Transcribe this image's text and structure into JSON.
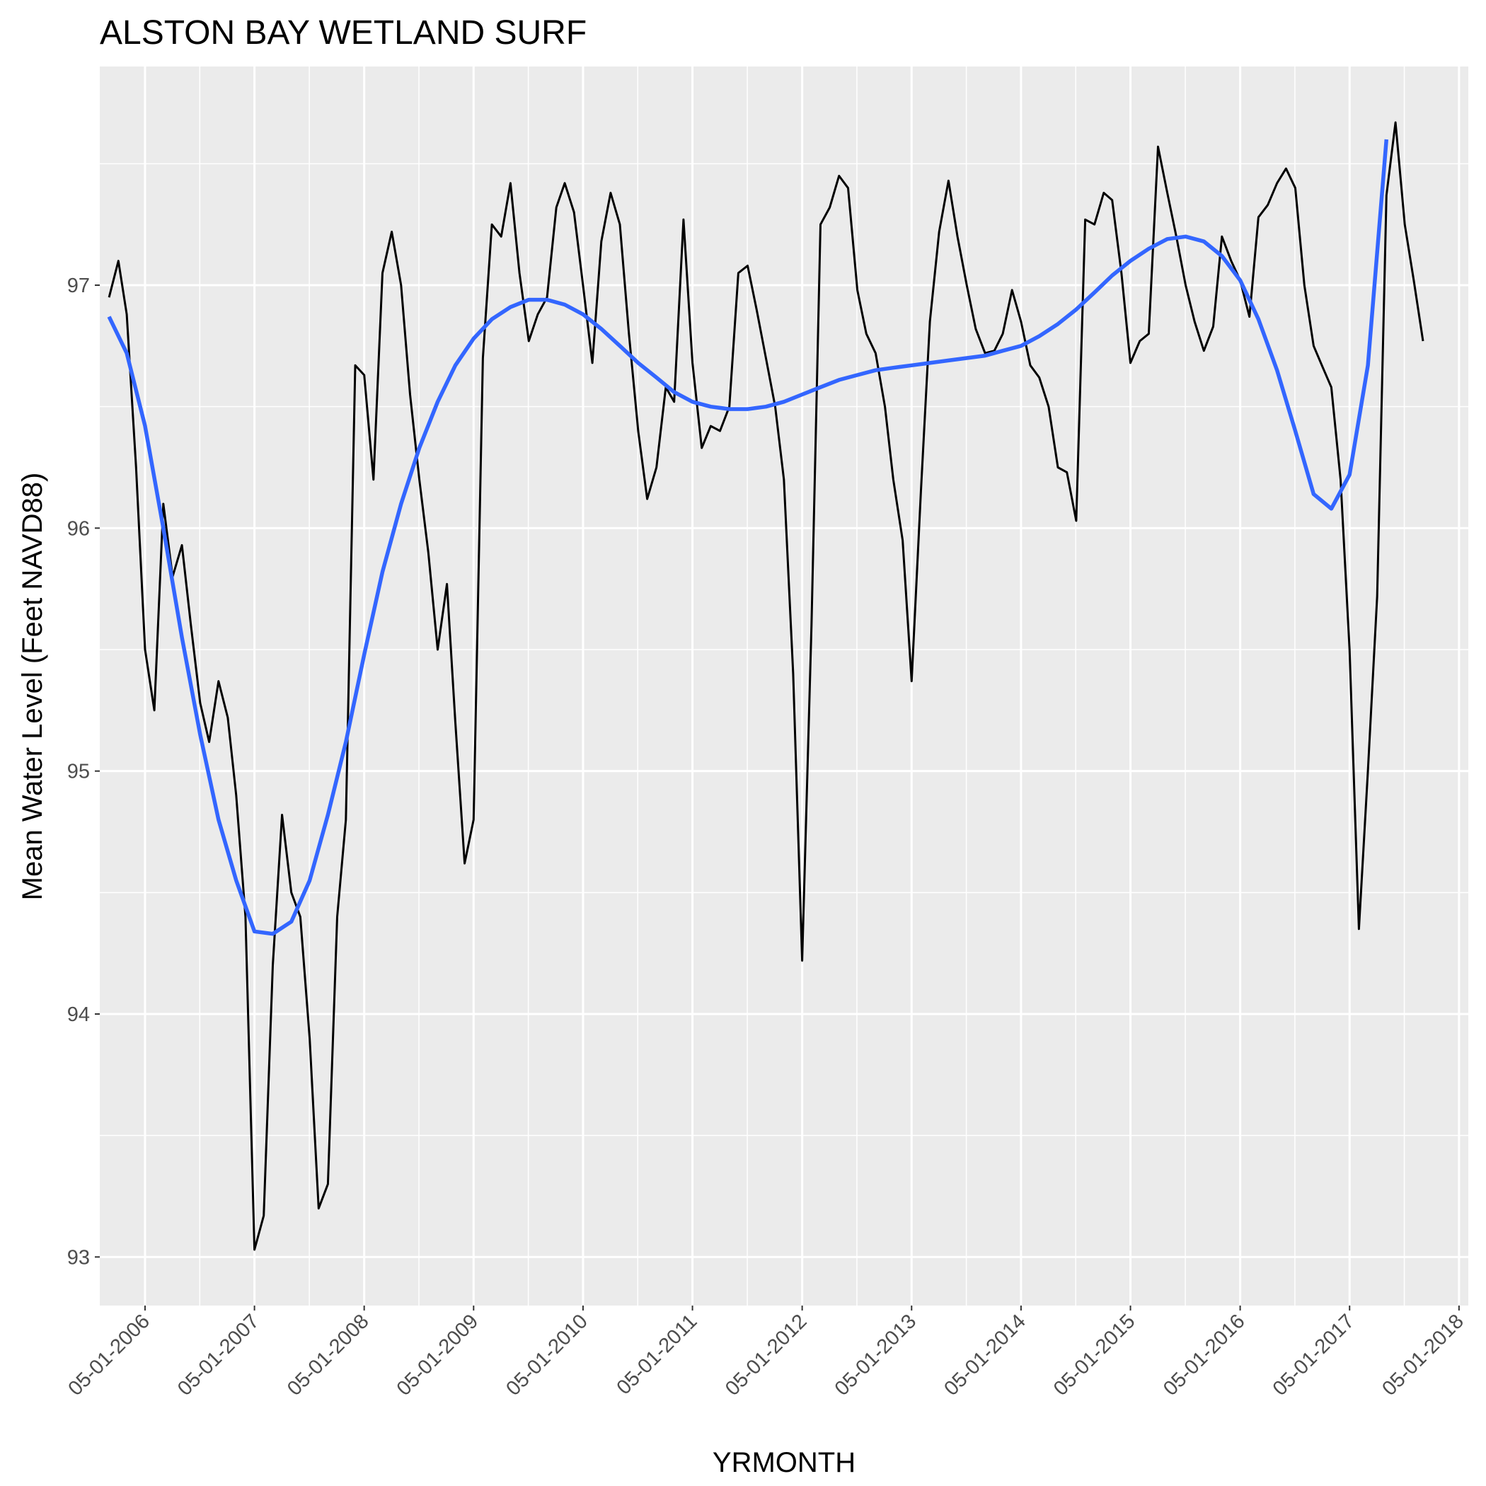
{
  "chart_data": {
    "type": "line",
    "title": "ALSTON BAY WETLAND SURF",
    "xlabel": "YRMONTH",
    "ylabel": "Mean Water Level (Feet NAVD88)",
    "grid": true,
    "panel_background": "#EBEBEB",
    "grid_color": "#FFFFFF",
    "xlim": [
      "2005-12-01",
      "2018-06-01"
    ],
    "ylim": [
      92.8,
      97.9
    ],
    "x_ticks": [
      "2006-05-01",
      "2007-05-01",
      "2008-05-01",
      "2009-05-01",
      "2010-05-01",
      "2011-05-01",
      "2012-05-01",
      "2013-05-01",
      "2014-05-01",
      "2015-05-01",
      "2016-05-01",
      "2017-05-01",
      "2018-05-01"
    ],
    "x_tick_labels": [
      "05-01-2006",
      "05-01-2007",
      "05-01-2008",
      "05-01-2009",
      "05-01-2010",
      "05-01-2011",
      "05-01-2012",
      "05-01-2013",
      "05-01-2014",
      "05-01-2015",
      "05-01-2016",
      "05-01-2017",
      "05-01-2018"
    ],
    "y_ticks": [
      93,
      94,
      95,
      96,
      97
    ],
    "y_tick_labels": [
      "93",
      "94",
      "95",
      "96",
      "97"
    ],
    "series": [
      {
        "color": "#000000",
        "points": [
          [
            "2006-01-01",
            96.95
          ],
          [
            "2006-02-01",
            97.1
          ],
          [
            "2006-03-01",
            96.88
          ],
          [
            "2006-04-01",
            96.25
          ],
          [
            "2006-05-01",
            95.5
          ],
          [
            "2006-06-01",
            95.25
          ],
          [
            "2006-07-01",
            96.1
          ],
          [
            "2006-08-01",
            95.8
          ],
          [
            "2006-09-01",
            95.93
          ],
          [
            "2006-10-01",
            95.6
          ],
          [
            "2006-11-01",
            95.28
          ],
          [
            "2006-12-01",
            95.12
          ],
          [
            "2007-01-01",
            95.37
          ],
          [
            "2007-02-01",
            95.22
          ],
          [
            "2007-03-01",
            94.9
          ],
          [
            "2007-04-01",
            94.4
          ],
          [
            "2007-05-01",
            93.03
          ],
          [
            "2007-06-01",
            93.17
          ],
          [
            "2007-07-01",
            94.2
          ],
          [
            "2007-08-01",
            94.82
          ],
          [
            "2007-09-01",
            94.5
          ],
          [
            "2007-10-01",
            94.4
          ],
          [
            "2007-11-01",
            93.9
          ],
          [
            "2007-12-01",
            93.2
          ],
          [
            "2008-01-01",
            93.3
          ],
          [
            "2008-02-01",
            94.4
          ],
          [
            "2008-03-01",
            94.8
          ],
          [
            "2008-04-01",
            96.67
          ],
          [
            "2008-05-01",
            96.63
          ],
          [
            "2008-06-01",
            96.2
          ],
          [
            "2008-07-01",
            97.05
          ],
          [
            "2008-08-01",
            97.22
          ],
          [
            "2008-09-01",
            97.0
          ],
          [
            "2008-10-01",
            96.55
          ],
          [
            "2008-11-01",
            96.2
          ],
          [
            "2008-12-01",
            95.9
          ],
          [
            "2009-01-01",
            95.5
          ],
          [
            "2009-02-01",
            95.77
          ],
          [
            "2009-03-01",
            95.2
          ],
          [
            "2009-04-01",
            94.62
          ],
          [
            "2009-05-01",
            94.8
          ],
          [
            "2009-06-01",
            96.7
          ],
          [
            "2009-07-01",
            97.25
          ],
          [
            "2009-08-01",
            97.2
          ],
          [
            "2009-09-01",
            97.42
          ],
          [
            "2009-10-01",
            97.05
          ],
          [
            "2009-11-01",
            96.77
          ],
          [
            "2009-12-01",
            96.88
          ],
          [
            "2010-01-01",
            96.95
          ],
          [
            "2010-02-01",
            97.32
          ],
          [
            "2010-03-01",
            97.42
          ],
          [
            "2010-04-01",
            97.3
          ],
          [
            "2010-05-01",
            97.0
          ],
          [
            "2010-06-01",
            96.68
          ],
          [
            "2010-07-01",
            97.18
          ],
          [
            "2010-08-01",
            97.38
          ],
          [
            "2010-09-01",
            97.25
          ],
          [
            "2010-10-01",
            96.8
          ],
          [
            "2010-11-01",
            96.4
          ],
          [
            "2010-12-01",
            96.12
          ],
          [
            "2011-01-01",
            96.25
          ],
          [
            "2011-02-01",
            96.58
          ],
          [
            "2011-03-01",
            96.52
          ],
          [
            "2011-04-01",
            97.27
          ],
          [
            "2011-05-01",
            96.68
          ],
          [
            "2011-06-01",
            96.33
          ],
          [
            "2011-07-01",
            96.42
          ],
          [
            "2011-08-01",
            96.4
          ],
          [
            "2011-09-01",
            96.5
          ],
          [
            "2011-10-01",
            97.05
          ],
          [
            "2011-11-01",
            97.08
          ],
          [
            "2011-12-01",
            96.9
          ],
          [
            "2012-01-01",
            96.7
          ],
          [
            "2012-02-01",
            96.5
          ],
          [
            "2012-03-01",
            96.2
          ],
          [
            "2012-04-01",
            95.4
          ],
          [
            "2012-05-01",
            94.22
          ],
          [
            "2012-06-01",
            95.6
          ],
          [
            "2012-07-01",
            97.25
          ],
          [
            "2012-08-01",
            97.32
          ],
          [
            "2012-09-01",
            97.45
          ],
          [
            "2012-10-01",
            97.4
          ],
          [
            "2012-11-01",
            96.98
          ],
          [
            "2012-12-01",
            96.8
          ],
          [
            "2013-01-01",
            96.72
          ],
          [
            "2013-02-01",
            96.5
          ],
          [
            "2013-03-01",
            96.2
          ],
          [
            "2013-04-01",
            95.95
          ],
          [
            "2013-05-01",
            95.37
          ],
          [
            "2013-06-01",
            96.15
          ],
          [
            "2013-07-01",
            96.85
          ],
          [
            "2013-08-01",
            97.22
          ],
          [
            "2013-09-01",
            97.43
          ],
          [
            "2013-10-01",
            97.2
          ],
          [
            "2013-11-01",
            97.0
          ],
          [
            "2013-12-01",
            96.82
          ],
          [
            "2014-01-01",
            96.72
          ],
          [
            "2014-02-01",
            96.73
          ],
          [
            "2014-03-01",
            96.8
          ],
          [
            "2014-04-01",
            96.98
          ],
          [
            "2014-05-01",
            96.85
          ],
          [
            "2014-06-01",
            96.67
          ],
          [
            "2014-07-01",
            96.62
          ],
          [
            "2014-08-01",
            96.5
          ],
          [
            "2014-09-01",
            96.25
          ],
          [
            "2014-10-01",
            96.23
          ],
          [
            "2014-11-01",
            96.03
          ],
          [
            "2014-12-01",
            97.27
          ],
          [
            "2015-01-01",
            97.25
          ],
          [
            "2015-02-01",
            97.38
          ],
          [
            "2015-03-01",
            97.35
          ],
          [
            "2015-04-01",
            97.05
          ],
          [
            "2015-05-01",
            96.68
          ],
          [
            "2015-06-01",
            96.77
          ],
          [
            "2015-07-01",
            96.8
          ],
          [
            "2015-08-01",
            97.57
          ],
          [
            "2015-09-01",
            97.38
          ],
          [
            "2015-10-01",
            97.2
          ],
          [
            "2015-11-01",
            97.0
          ],
          [
            "2015-12-01",
            96.85
          ],
          [
            "2016-01-01",
            96.73
          ],
          [
            "2016-02-01",
            96.83
          ],
          [
            "2016-03-01",
            97.2
          ],
          [
            "2016-04-01",
            97.1
          ],
          [
            "2016-05-01",
            97.02
          ],
          [
            "2016-06-01",
            96.87
          ],
          [
            "2016-07-01",
            97.28
          ],
          [
            "2016-08-01",
            97.33
          ],
          [
            "2016-09-01",
            97.42
          ],
          [
            "2016-10-01",
            97.48
          ],
          [
            "2016-11-01",
            97.4
          ],
          [
            "2016-12-01",
            97.0
          ],
          [
            "2017-01-01",
            96.75
          ],
          [
            "2017-02-01",
            96.66
          ],
          [
            "2017-03-01",
            96.58
          ],
          [
            "2017-04-01",
            96.2
          ],
          [
            "2017-05-01",
            95.5
          ],
          [
            "2017-06-01",
            94.35
          ],
          [
            "2017-07-01",
            95.0
          ],
          [
            "2017-08-01",
            95.72
          ],
          [
            "2017-09-01",
            97.37
          ],
          [
            "2017-10-01",
            97.67
          ],
          [
            "2017-11-01",
            97.25
          ],
          [
            "2017-12-01",
            97.02
          ],
          [
            "2018-01-01",
            96.77
          ]
        ]
      },
      {
        "color": "#3366FF",
        "points": [
          [
            "2006-01-01",
            96.87
          ],
          [
            "2006-03-01",
            96.72
          ],
          [
            "2006-05-01",
            96.42
          ],
          [
            "2006-07-01",
            96.0
          ],
          [
            "2006-09-01",
            95.55
          ],
          [
            "2006-11-01",
            95.15
          ],
          [
            "2007-01-01",
            94.8
          ],
          [
            "2007-03-01",
            94.55
          ],
          [
            "2007-05-01",
            94.34
          ],
          [
            "2007-07-01",
            94.33
          ],
          [
            "2007-09-01",
            94.38
          ],
          [
            "2007-11-01",
            94.55
          ],
          [
            "2008-01-01",
            94.82
          ],
          [
            "2008-03-01",
            95.12
          ],
          [
            "2008-05-01",
            95.48
          ],
          [
            "2008-07-01",
            95.82
          ],
          [
            "2008-09-01",
            96.1
          ],
          [
            "2008-11-01",
            96.33
          ],
          [
            "2009-01-01",
            96.52
          ],
          [
            "2009-03-01",
            96.67
          ],
          [
            "2009-05-01",
            96.78
          ],
          [
            "2009-07-01",
            96.86
          ],
          [
            "2009-09-01",
            96.91
          ],
          [
            "2009-11-01",
            96.94
          ],
          [
            "2010-01-01",
            96.94
          ],
          [
            "2010-03-01",
            96.92
          ],
          [
            "2010-05-01",
            96.88
          ],
          [
            "2010-07-01",
            96.82
          ],
          [
            "2010-09-01",
            96.75
          ],
          [
            "2010-11-01",
            96.68
          ],
          [
            "2011-01-01",
            96.62
          ],
          [
            "2011-03-01",
            96.56
          ],
          [
            "2011-05-01",
            96.52
          ],
          [
            "2011-07-01",
            96.5
          ],
          [
            "2011-09-01",
            96.49
          ],
          [
            "2011-11-01",
            96.49
          ],
          [
            "2012-01-01",
            96.5
          ],
          [
            "2012-03-01",
            96.52
          ],
          [
            "2012-05-01",
            96.55
          ],
          [
            "2012-07-01",
            96.58
          ],
          [
            "2012-09-01",
            96.61
          ],
          [
            "2012-11-01",
            96.63
          ],
          [
            "2013-01-01",
            96.65
          ],
          [
            "2013-03-01",
            96.66
          ],
          [
            "2013-05-01",
            96.67
          ],
          [
            "2013-07-01",
            96.68
          ],
          [
            "2013-09-01",
            96.69
          ],
          [
            "2013-11-01",
            96.7
          ],
          [
            "2014-01-01",
            96.71
          ],
          [
            "2014-03-01",
            96.73
          ],
          [
            "2014-05-01",
            96.75
          ],
          [
            "2014-07-01",
            96.79
          ],
          [
            "2014-09-01",
            96.84
          ],
          [
            "2014-11-01",
            96.9
          ],
          [
            "2015-01-01",
            96.97
          ],
          [
            "2015-03-01",
            97.04
          ],
          [
            "2015-05-01",
            97.1
          ],
          [
            "2015-07-01",
            97.15
          ],
          [
            "2015-09-01",
            97.19
          ],
          [
            "2015-11-01",
            97.2
          ],
          [
            "2016-01-01",
            97.18
          ],
          [
            "2016-03-01",
            97.12
          ],
          [
            "2016-05-01",
            97.02
          ],
          [
            "2016-07-01",
            96.86
          ],
          [
            "2016-09-01",
            96.65
          ],
          [
            "2016-11-01",
            96.4
          ],
          [
            "2017-01-01",
            96.14
          ],
          [
            "2017-03-01",
            96.08
          ],
          [
            "2017-05-01",
            96.22
          ],
          [
            "2017-07-01",
            96.67
          ],
          [
            "2017-09-01",
            97.6
          ]
        ]
      }
    ]
  }
}
